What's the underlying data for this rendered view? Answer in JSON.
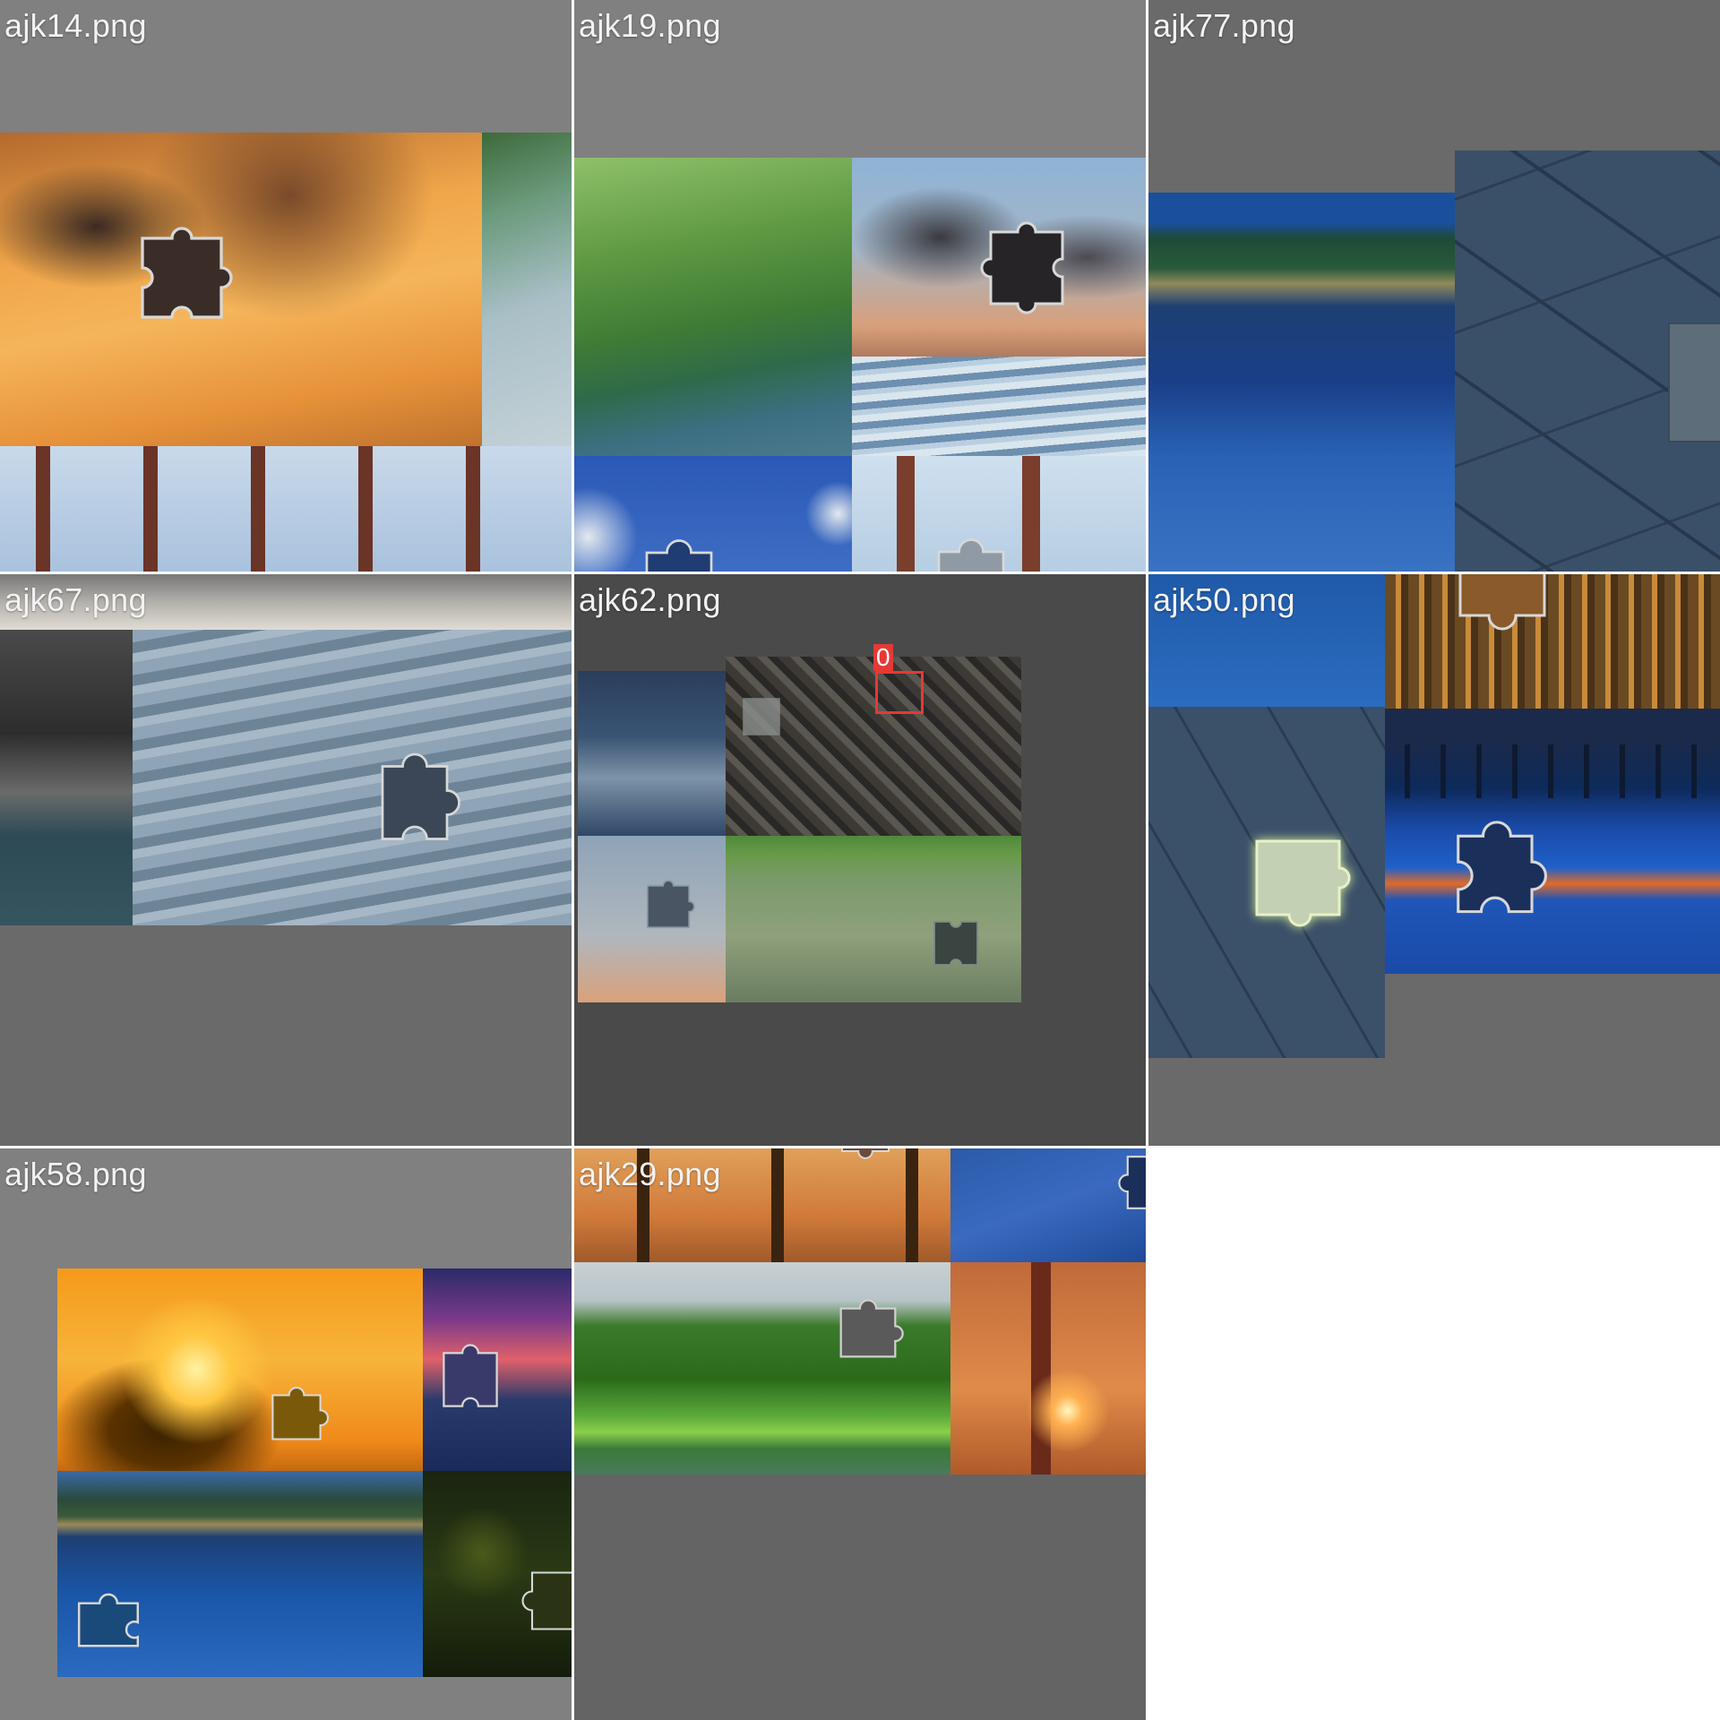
{
  "gallery": {
    "cells": [
      {
        "id": "c0",
        "filename": "ajk14.png",
        "bg": "#808080"
      },
      {
        "id": "c1",
        "filename": "ajk19.png",
        "bg": "#808080"
      },
      {
        "id": "c2",
        "filename": "ajk77.png",
        "bg": "#6a6a6a"
      },
      {
        "id": "c3",
        "filename": "ajk67.png",
        "bg": "#6a6a6a"
      },
      {
        "id": "c4",
        "filename": "ajk62.png",
        "bg": "#4a4a4a"
      },
      {
        "id": "c5",
        "filename": "ajk50.png",
        "bg": "#6a6a6a"
      },
      {
        "id": "c6",
        "filename": "ajk58.png",
        "bg": "#808080"
      },
      {
        "id": "c7",
        "filename": "ajk29.png",
        "bg": "#646464"
      }
    ],
    "marker": {
      "label": "0",
      "color": "#e53935"
    }
  },
  "colors": {
    "sky_orange": "#e2953e",
    "forest_green": "#4d8a3a",
    "lake_blue": "#1f4f94",
    "ocean_blue": "#1a4aa8",
    "slate": "#3a4f68",
    "piece_outline": "#d8d8d8"
  }
}
